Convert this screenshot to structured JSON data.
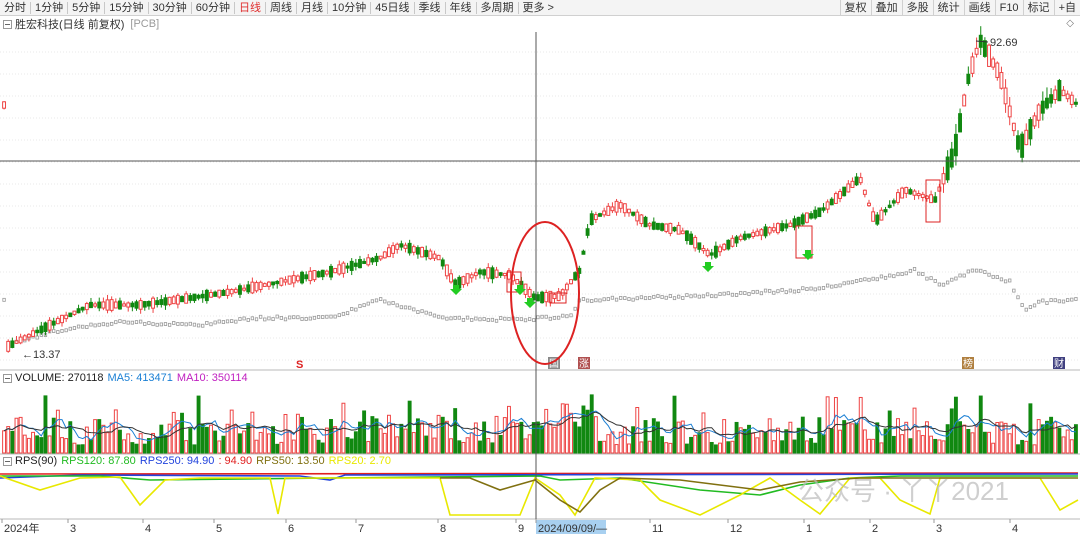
{
  "toolbar": {
    "periods": [
      "分时",
      "1分钟",
      "5分钟",
      "15分钟",
      "30分钟",
      "60分钟",
      "日线",
      "周线",
      "月线",
      "10分钟",
      "45日线",
      "季线",
      "年线",
      "多周期",
      "更多 >"
    ],
    "active_period": "日线",
    "right_items": [
      "复权",
      "叠加",
      "多股",
      "统计",
      "画线",
      "F10",
      "标记",
      "+自"
    ]
  },
  "stock": {
    "name": "胜宏科技(日线 前复权)",
    "code": "[PCB]"
  },
  "price_labels": {
    "high": "92.69",
    "low": "←13.37"
  },
  "event_markers": {
    "s": "S",
    "guo": "国",
    "zhang": "涨",
    "jiang": "榜",
    "cai": "财"
  },
  "volume_indicator": {
    "label": "VOLUME: 270118",
    "ma5": "MA5: 413471",
    "ma10": "MA10: 350114",
    "colors": {
      "label": "#222222",
      "ma5": "#1a7fd4",
      "ma10": "#c020c0"
    }
  },
  "rps_indicator": {
    "label": "RPS(90)",
    "rps120": "RPS120: 87.80",
    "rps250": "RPS250: 94.90",
    "rps90val": ": 94.90",
    "rps50": "RPS50: 13.50",
    "rps20": "RPS20: 2.70",
    "colors": {
      "rps120": "#22bb22",
      "rps250": "#2244dd",
      "rps90": "#e02020",
      "rps50": "#807010",
      "rps20": "#e8e800"
    }
  },
  "x_axis": {
    "labels": [
      "2024年",
      "3",
      "4",
      "5",
      "6",
      "7",
      "8",
      "9",
      "2024/09/09/—",
      "11",
      "12",
      "1",
      "2",
      "3",
      "4"
    ]
  },
  "watermark": "公众号 · 丫丫2021",
  "colors": {
    "up": "#ee4444",
    "down": "#118811",
    "cross": "#555555",
    "circle": "#dd2222",
    "compare": "#999999"
  },
  "chart_data": {
    "type": "candlestick",
    "title": "胜宏科技(日线 前复权)",
    "price_range": [
      13.37,
      92.69
    ],
    "annotations": [
      "92.69",
      "13.37"
    ],
    "volume_ma": {
      "MA5": 413471,
      "MA10": 350114,
      "VOLUME": 270118
    },
    "rps": {
      "RPS120": 87.8,
      "RPS250": 94.9,
      "RPS90": 94.9,
      "RPS50": 13.5,
      "RPS20": 2.7
    }
  }
}
